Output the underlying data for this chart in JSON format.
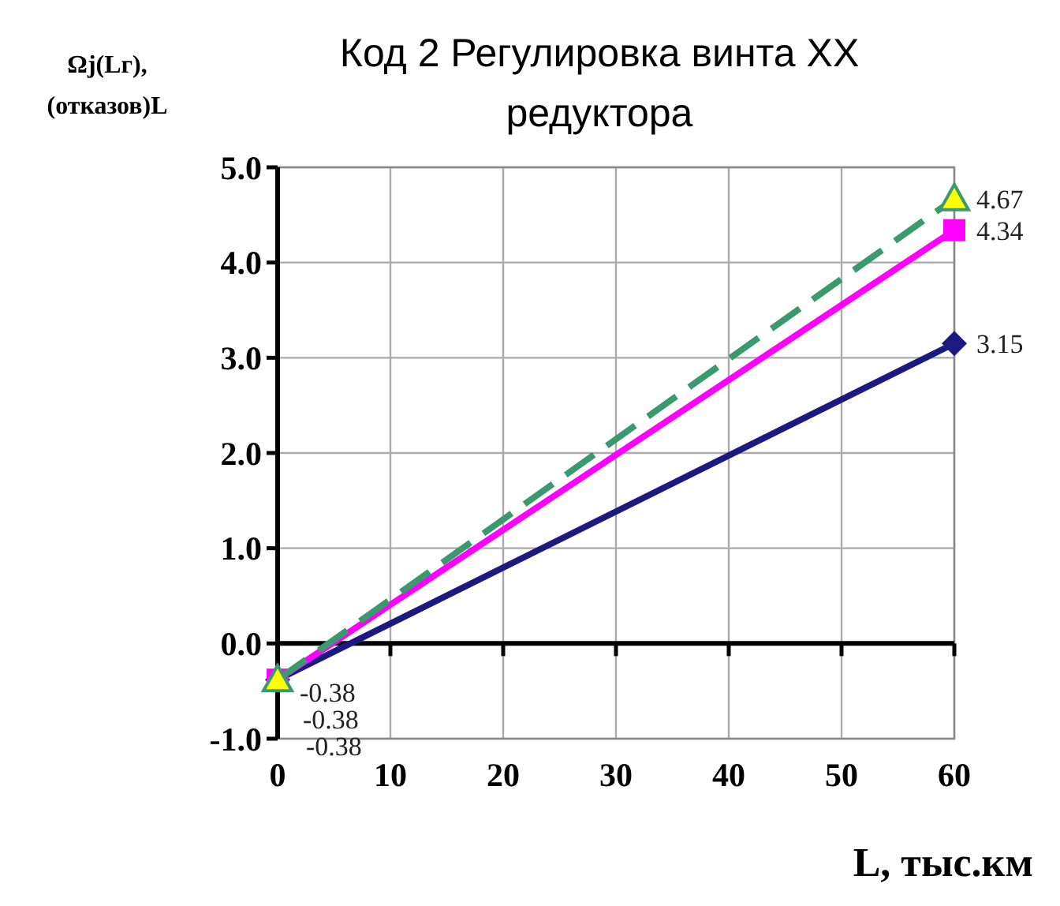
{
  "chart_data": {
    "type": "line",
    "title": "Код 2 Регулировка винта ХХ редуктора",
    "xlabel": "L, тыс.км",
    "ylabel": "Ωj(Lг), (отказов)L",
    "x": [
      0,
      60
    ],
    "series": [
      {
        "color": "#1a1a80",
        "values": [
          -0.38,
          3.15
        ],
        "marker": "diamond",
        "line_style": "solid",
        "value_labels": [
          "-0.38",
          "3.15"
        ]
      },
      {
        "color": "#ff00ff",
        "values": [
          -0.38,
          4.34
        ],
        "marker": "square",
        "line_style": "solid",
        "value_labels": [
          "-0.38",
          "4.34"
        ]
      },
      {
        "color": "#3a9a6e",
        "values": [
          -0.38,
          4.67
        ],
        "marker": "triangle",
        "line_style": "dashed",
        "value_labels": [
          "-0.38",
          "4.67"
        ]
      }
    ],
    "xlim": [
      0,
      60
    ],
    "xticks": [
      0,
      10,
      20,
      30,
      40,
      50,
      60
    ],
    "ylim": [
      -1.0,
      5.0
    ],
    "yticks": [
      {
        "value": -1,
        "label": "-1.0"
      },
      {
        "value": 0,
        "label": "0.0"
      },
      {
        "value": 1,
        "label": "1.0"
      },
      {
        "value": 2,
        "label": "2.0"
      },
      {
        "value": 3,
        "label": "3.0"
      },
      {
        "value": 4,
        "label": "4.0"
      },
      {
        "value": 5,
        "label": "5.0"
      }
    ],
    "grid": true
  }
}
